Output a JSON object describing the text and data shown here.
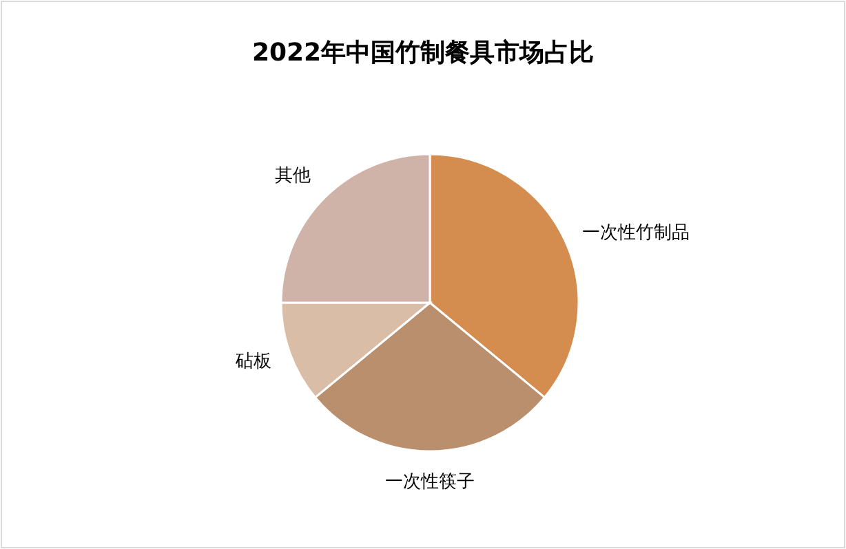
{
  "chart_data": {
    "type": "pie",
    "title": "2022年中国竹制餐具市场占比",
    "categories": [
      "一次性竹制品",
      "一次性筷子",
      "砧板",
      "其他"
    ],
    "values": [
      36,
      28,
      11,
      25
    ],
    "colors": [
      "#d48c4f",
      "#b98f6e",
      "#d9bda6",
      "#d0b3a8"
    ]
  }
}
